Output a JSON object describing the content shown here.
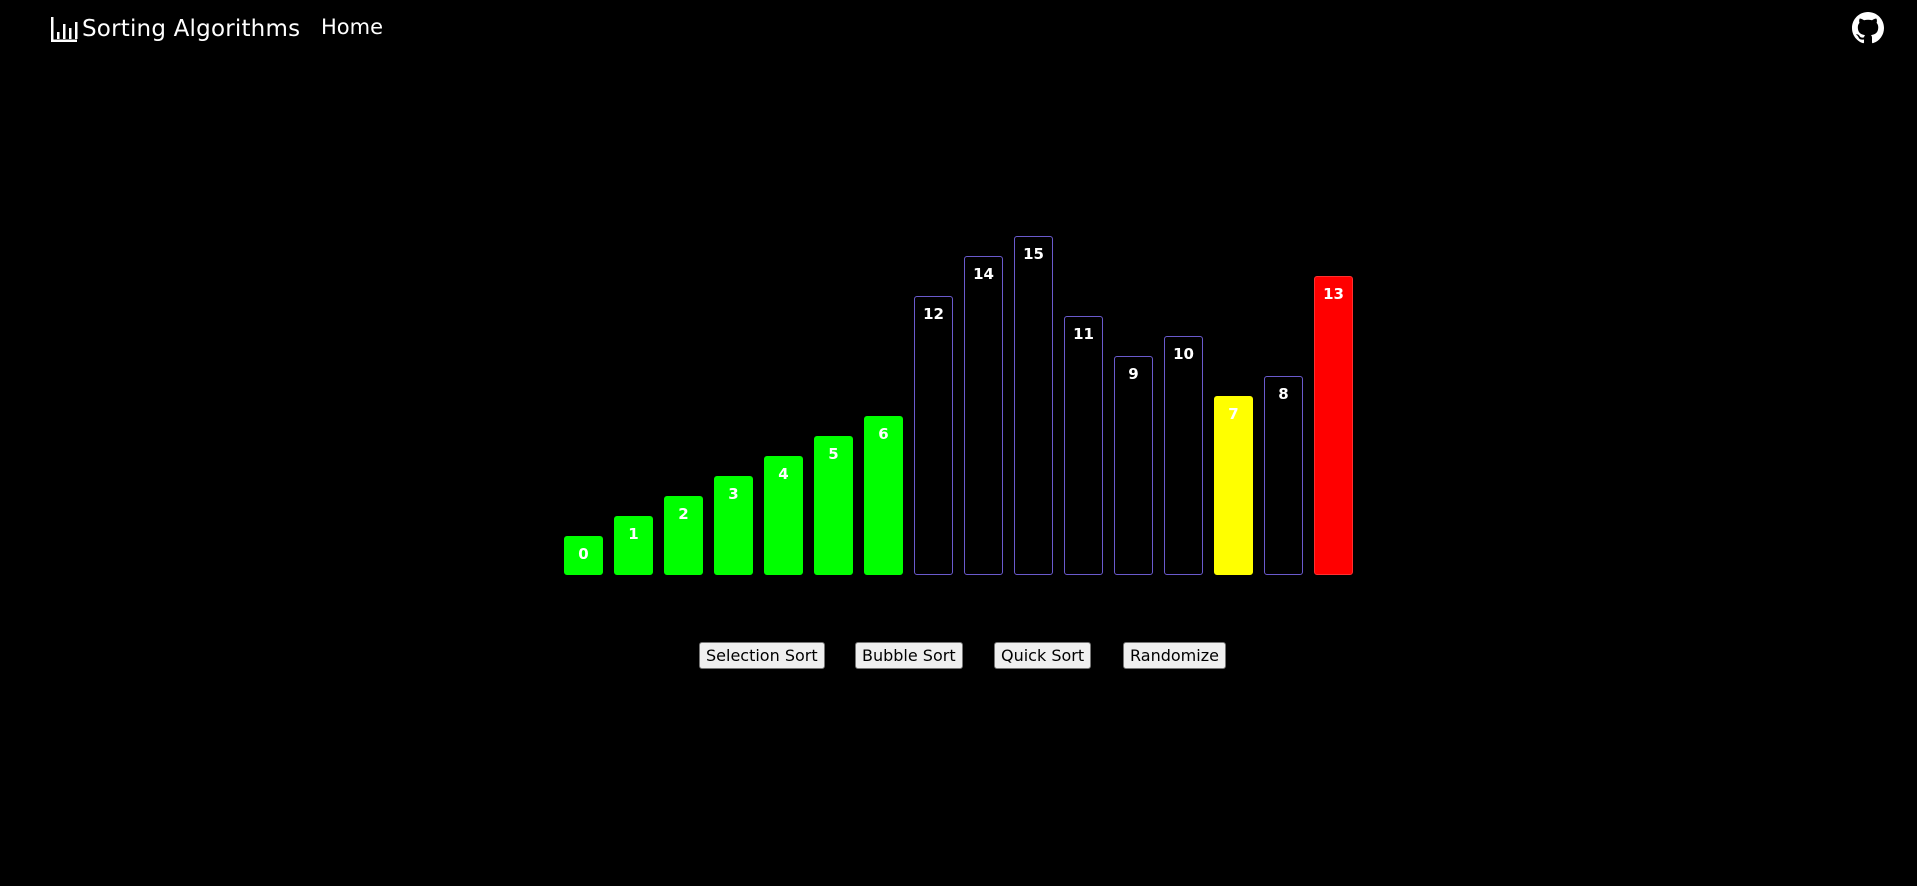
{
  "navbar": {
    "brand": "Sorting Algorithms",
    "brand_icon": "bar-chart-icon",
    "home_label": "Home",
    "github_icon": "github-icon"
  },
  "colors": {
    "background": "#000000",
    "sorted": "#00ff00",
    "comparing": "#ffff00",
    "pivot": "#ff0000",
    "unsorted_border": "#6a5acd"
  },
  "bars": [
    {
      "value": 0,
      "state": "sorted"
    },
    {
      "value": 1,
      "state": "sorted"
    },
    {
      "value": 2,
      "state": "sorted"
    },
    {
      "value": 3,
      "state": "sorted"
    },
    {
      "value": 4,
      "state": "sorted"
    },
    {
      "value": 5,
      "state": "sorted"
    },
    {
      "value": 6,
      "state": "sorted"
    },
    {
      "value": 12,
      "state": "unsorted"
    },
    {
      "value": 14,
      "state": "unsorted"
    },
    {
      "value": 15,
      "state": "unsorted"
    },
    {
      "value": 11,
      "state": "unsorted"
    },
    {
      "value": 9,
      "state": "unsorted"
    },
    {
      "value": 10,
      "state": "unsorted"
    },
    {
      "value": 7,
      "state": "compare"
    },
    {
      "value": 8,
      "state": "unsorted"
    },
    {
      "value": 13,
      "state": "pivot"
    }
  ],
  "controls": {
    "selection_sort": "Selection Sort",
    "bubble_sort": "Bubble Sort",
    "quick_sort": "Quick Sort",
    "randomize": "Randomize"
  }
}
